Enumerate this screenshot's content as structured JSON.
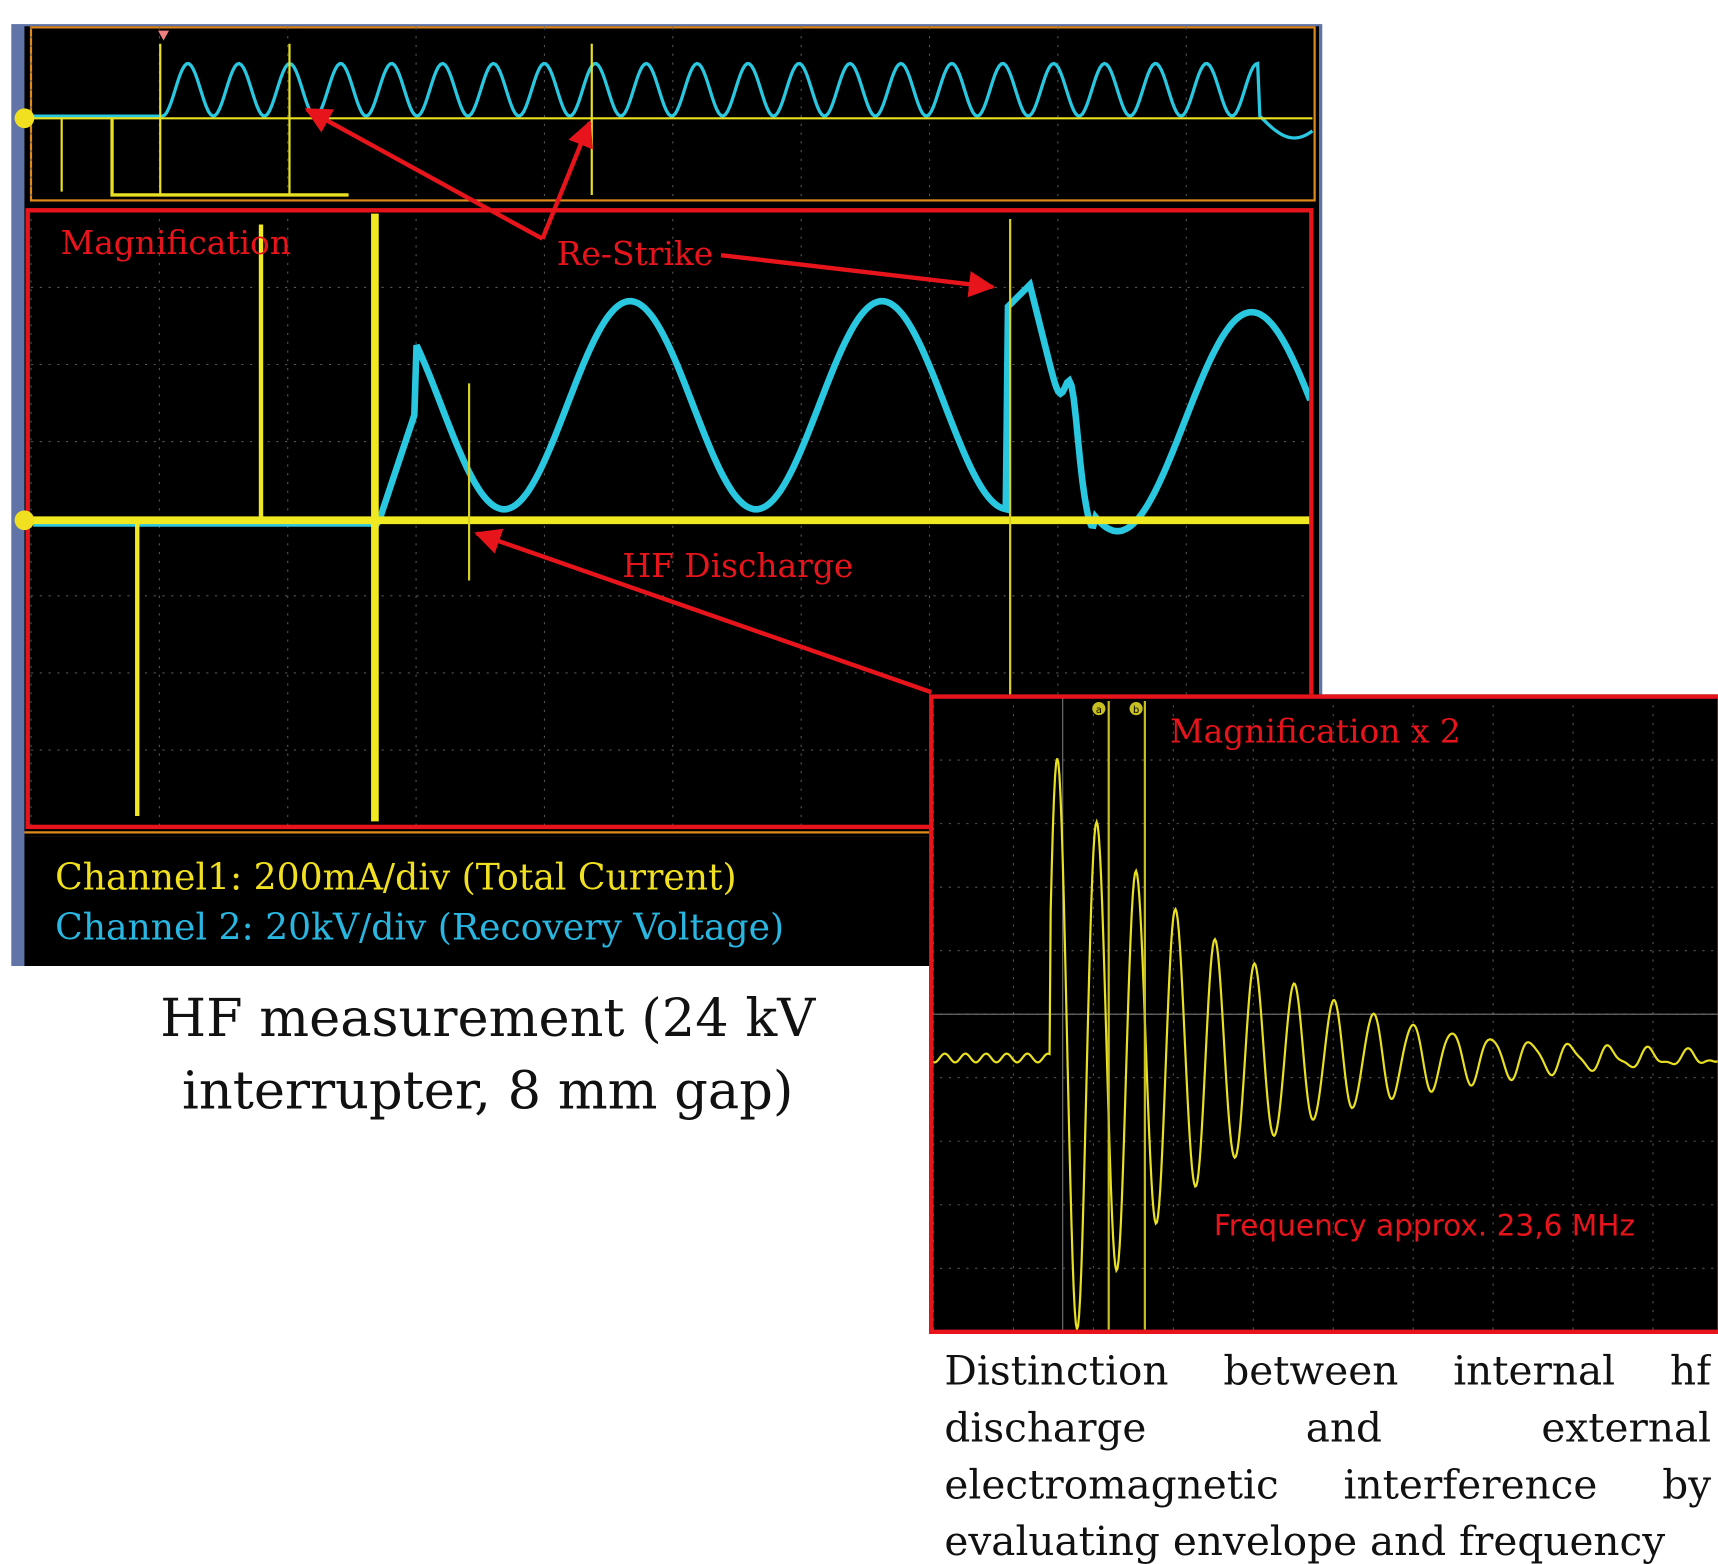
{
  "scope_main": {
    "annotations": [
      "Magnification",
      "Re-Strike",
      "HF Discharge"
    ],
    "legend": [
      "Channel1: 200mA/div (Total Current)",
      "Channel 2: 20kV/div (Recovery Voltage)"
    ]
  },
  "caption": [
    "HF measurement (24 kV",
    "interrupter, 8 mm gap)"
  ],
  "scope_zoom": {
    "title": "Magnification x 2",
    "annotation": "Frequency approx. 23,6 MHz",
    "cursors": [
      "a",
      "b"
    ]
  },
  "description": "Distinction between internal hf discharge and external electromagnetic interference by evaluating envelope and frequency"
}
